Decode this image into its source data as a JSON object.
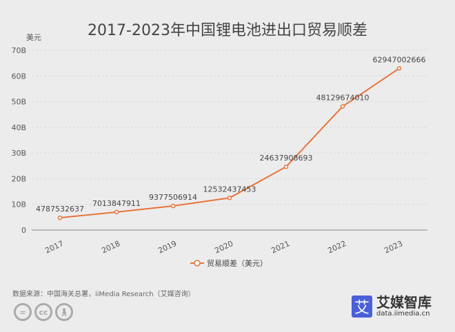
{
  "chart_data": {
    "type": "line",
    "title": "2017-2023年中国锂电池进出口贸易顺差",
    "ylabel": "美元",
    "categories": [
      "2017",
      "2018",
      "2019",
      "2020",
      "2021",
      "2022",
      "2023"
    ],
    "series": [
      {
        "name": "贸易顺差（美元）",
        "values": [
          4787532637,
          7013847911,
          9377506914,
          12532437453,
          24637908693,
          48129674010,
          62947002666
        ],
        "color": "#e8733a"
      }
    ],
    "yticks": [
      "0",
      "10B",
      "20B",
      "30B",
      "40B",
      "50B",
      "60B",
      "70B"
    ],
    "ylim": [
      0,
      70000000000
    ],
    "grid": true,
    "legend": "bottom"
  },
  "footer": {
    "source": "数据来源：中国海关总署，iiMedia Research（艾媒咨询）",
    "cc_icons": [
      "=",
      "cc",
      "person-icon"
    ],
    "logo_mark": "艾",
    "logo_name": "艾媒智库",
    "logo_url": "data.iimedia.cn"
  }
}
